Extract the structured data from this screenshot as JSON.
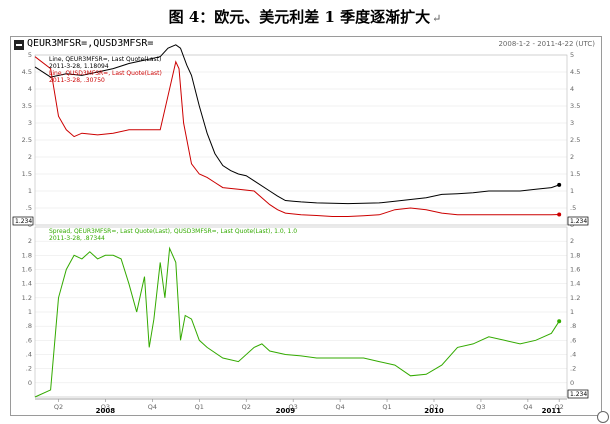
{
  "doc_title": "图 4：欧元、美元利差 1 季度逐渐扩大",
  "para_mark": "↵",
  "header": {
    "ticker": "QEUR3MFSR=,QUSD3MFSR=",
    "date_range": "2008-1-2 - 2011-4-22 (UTC)"
  },
  "legend_top": {
    "line1": "Line, QEUR3MFSR=, Last Quote(Last)",
    "line2": "2011-3-28, 1.18094",
    "line3": "Line, QUSD3MFSR=, Last Quote(Last)",
    "line4": "2011-3-28, .30750"
  },
  "legend_bottom": {
    "line1": "Spread, QEUR3MFSR=, Last Quote(Last), QUSD3MFSR=, Last Quote(Last), 1.0, 1.0",
    "line2": "2011-3-28, .87344"
  },
  "tags": {
    "top_left": "1.234",
    "top_right": "1.234",
    "bottom_right": "1.234"
  },
  "colors": {
    "eur": "#000000",
    "usd": "#cc0000",
    "spread": "#33aa00",
    "axis": "#999999"
  },
  "chart_data": [
    {
      "type": "line",
      "title": "",
      "ylim": [
        0,
        5
      ],
      "y_ticks": [
        "0",
        ".5",
        "1",
        "1.5",
        "2",
        "2.5",
        "3",
        "3.5",
        "4",
        "4.5",
        "5"
      ],
      "series": [
        {
          "name": "QEUR3MFSR=",
          "points": [
            [
              0,
              4.65
            ],
            [
              1,
              4.35
            ],
            [
              2,
              4.45
            ],
            [
              3,
              4.4
            ],
            [
              4,
              4.5
            ],
            [
              5,
              4.6
            ],
            [
              6,
              4.75
            ],
            [
              7,
              4.85
            ],
            [
              8,
              4.95
            ],
            [
              8.5,
              5.2
            ],
            [
              9,
              5.3
            ],
            [
              9.3,
              5.2
            ],
            [
              9.7,
              4.7
            ],
            [
              10,
              4.4
            ],
            [
              10.5,
              3.5
            ],
            [
              11,
              2.7
            ],
            [
              11.5,
              2.1
            ],
            [
              12,
              1.75
            ],
            [
              12.5,
              1.6
            ],
            [
              13,
              1.5
            ],
            [
              13.5,
              1.45
            ],
            [
              14,
              1.3
            ],
            [
              15,
              1.0
            ],
            [
              15.5,
              0.85
            ],
            [
              16,
              0.72
            ],
            [
              16.5,
              0.7
            ],
            [
              17,
              0.68
            ],
            [
              18,
              0.65
            ],
            [
              19,
              0.64
            ],
            [
              20,
              0.63
            ],
            [
              21,
              0.64
            ],
            [
              22,
              0.65
            ],
            [
              23,
              0.7
            ],
            [
              24,
              0.75
            ],
            [
              25,
              0.8
            ],
            [
              26,
              0.9
            ],
            [
              27,
              0.92
            ],
            [
              28,
              0.95
            ],
            [
              29,
              1.0
            ],
            [
              30,
              1.0
            ],
            [
              31,
              1.0
            ],
            [
              32,
              1.05
            ],
            [
              33,
              1.1
            ],
            [
              33.5,
              1.18
            ]
          ]
        },
        {
          "name": "QUSD3MFSR=",
          "points": [
            [
              0,
              4.95
            ],
            [
              1,
              4.6
            ],
            [
              1.5,
              3.2
            ],
            [
              2,
              2.8
            ],
            [
              2.5,
              2.6
            ],
            [
              3,
              2.7
            ],
            [
              4,
              2.65
            ],
            [
              5,
              2.7
            ],
            [
              6,
              2.8
            ],
            [
              7,
              2.8
            ],
            [
              8,
              2.8
            ],
            [
              8.5,
              3.8
            ],
            [
              9,
              4.8
            ],
            [
              9.2,
              4.6
            ],
            [
              9.5,
              3.0
            ],
            [
              10,
              1.8
            ],
            [
              10.5,
              1.5
            ],
            [
              11,
              1.4
            ],
            [
              11.5,
              1.25
            ],
            [
              12,
              1.1
            ],
            [
              13,
              1.05
            ],
            [
              14,
              1.0
            ],
            [
              15,
              0.6
            ],
            [
              15.5,
              0.45
            ],
            [
              16,
              0.35
            ],
            [
              17,
              0.3
            ],
            [
              18,
              0.28
            ],
            [
              19,
              0.25
            ],
            [
              20,
              0.25
            ],
            [
              21,
              0.27
            ],
            [
              22,
              0.3
            ],
            [
              23,
              0.45
            ],
            [
              24,
              0.5
            ],
            [
              25,
              0.45
            ],
            [
              26,
              0.35
            ],
            [
              27,
              0.3
            ],
            [
              28,
              0.3
            ],
            [
              29,
              0.3
            ],
            [
              30,
              0.3
            ],
            [
              31,
              0.3
            ],
            [
              32,
              0.3
            ],
            [
              33,
              0.3
            ],
            [
              33.5,
              0.31
            ]
          ]
        }
      ]
    },
    {
      "type": "line",
      "title": "",
      "ylim": [
        -0.2,
        2.2
      ],
      "y_ticks": [
        "0",
        ".2",
        ".4",
        ".6",
        ".8",
        "1",
        "1.2",
        "1.4",
        "1.6",
        "1.8",
        "2"
      ],
      "series": [
        {
          "name": "Spread",
          "points": [
            [
              0,
              -0.2
            ],
            [
              1,
              -0.1
            ],
            [
              1.5,
              1.2
            ],
            [
              2,
              1.6
            ],
            [
              2.5,
              1.8
            ],
            [
              3,
              1.75
            ],
            [
              3.5,
              1.85
            ],
            [
              4,
              1.75
            ],
            [
              4.5,
              1.8
            ],
            [
              5,
              1.8
            ],
            [
              5.5,
              1.75
            ],
            [
              6,
              1.4
            ],
            [
              6.5,
              1.0
            ],
            [
              7,
              1.5
            ],
            [
              7.3,
              0.5
            ],
            [
              7.6,
              0.9
            ],
            [
              8,
              1.7
            ],
            [
              8.3,
              1.2
            ],
            [
              8.6,
              1.9
            ],
            [
              9,
              1.7
            ],
            [
              9.3,
              0.6
            ],
            [
              9.6,
              0.95
            ],
            [
              10,
              0.9
            ],
            [
              10.5,
              0.6
            ],
            [
              11,
              0.5
            ],
            [
              12,
              0.35
            ],
            [
              13,
              0.3
            ],
            [
              14,
              0.5
            ],
            [
              14.5,
              0.55
            ],
            [
              15,
              0.45
            ],
            [
              16,
              0.4
            ],
            [
              17,
              0.38
            ],
            [
              18,
              0.35
            ],
            [
              19,
              0.35
            ],
            [
              20,
              0.35
            ],
            [
              21,
              0.35
            ],
            [
              22,
              0.3
            ],
            [
              23,
              0.25
            ],
            [
              24,
              0.1
            ],
            [
              25,
              0.12
            ],
            [
              26,
              0.25
            ],
            [
              27,
              0.5
            ],
            [
              28,
              0.55
            ],
            [
              29,
              0.65
            ],
            [
              30,
              0.6
            ],
            [
              31,
              0.55
            ],
            [
              32,
              0.6
            ],
            [
              33,
              0.7
            ],
            [
              33.5,
              0.87
            ]
          ]
        }
      ]
    }
  ],
  "x_axis": {
    "range": [
      0,
      34
    ],
    "quarter_ticks": [
      {
        "x": 1.5,
        "label": "Q2"
      },
      {
        "x": 4.5,
        "label": "Q3"
      },
      {
        "x": 7.5,
        "label": "Q4"
      },
      {
        "x": 10.5,
        "label": "Q1"
      },
      {
        "x": 13.5,
        "label": "Q2"
      },
      {
        "x": 16.5,
        "label": "Q3"
      },
      {
        "x": 19.5,
        "label": "Q4"
      },
      {
        "x": 22.5,
        "label": "Q1"
      },
      {
        "x": 25.5,
        "label": "Q2"
      },
      {
        "x": 28.5,
        "label": "Q3"
      },
      {
        "x": 31.5,
        "label": "Q4"
      },
      {
        "x": 33.5,
        "label": "Q2"
      }
    ],
    "years": [
      {
        "x": 4.5,
        "label": "2008"
      },
      {
        "x": 16,
        "label": "2009"
      },
      {
        "x": 25.5,
        "label": "2010"
      },
      {
        "x": 33,
        "label": "2011"
      }
    ]
  }
}
